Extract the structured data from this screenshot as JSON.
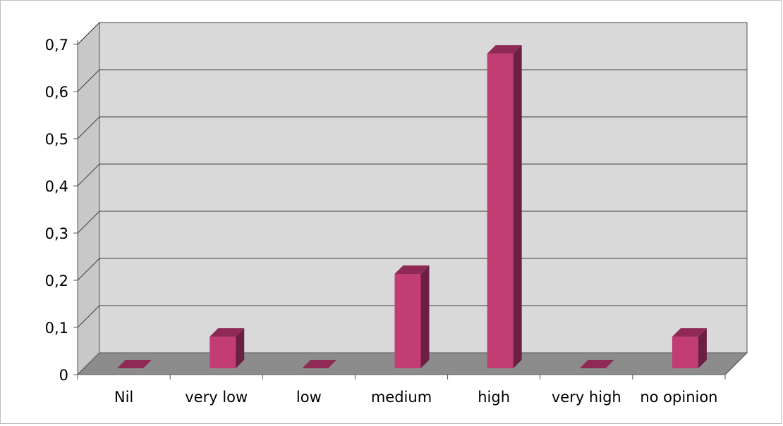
{
  "chart_data": {
    "type": "bar",
    "categories": [
      "Nil",
      "very low",
      "low",
      "medium",
      "high",
      "very high",
      "no opinion"
    ],
    "values": [
      0,
      0.067,
      0,
      0.2,
      0.667,
      0,
      0.067
    ],
    "y_ticks": [
      "0",
      "0,1",
      "0,2",
      "0,3",
      "0,4",
      "0,5",
      "0,6",
      "0,7"
    ],
    "ylim": [
      0,
      0.7
    ],
    "grid": true,
    "three_d": true,
    "legend": "none",
    "title": "",
    "xlabel": "",
    "ylabel": "",
    "colors": {
      "bar_front": "#c13d74",
      "bar_top": "#8f2a57",
      "bar_side": "#6b1f42",
      "back_wall": "#d9d9d9",
      "side_wall": "#c8c8c8",
      "floor": "#8c8c8c",
      "grid": "#404040"
    }
  }
}
